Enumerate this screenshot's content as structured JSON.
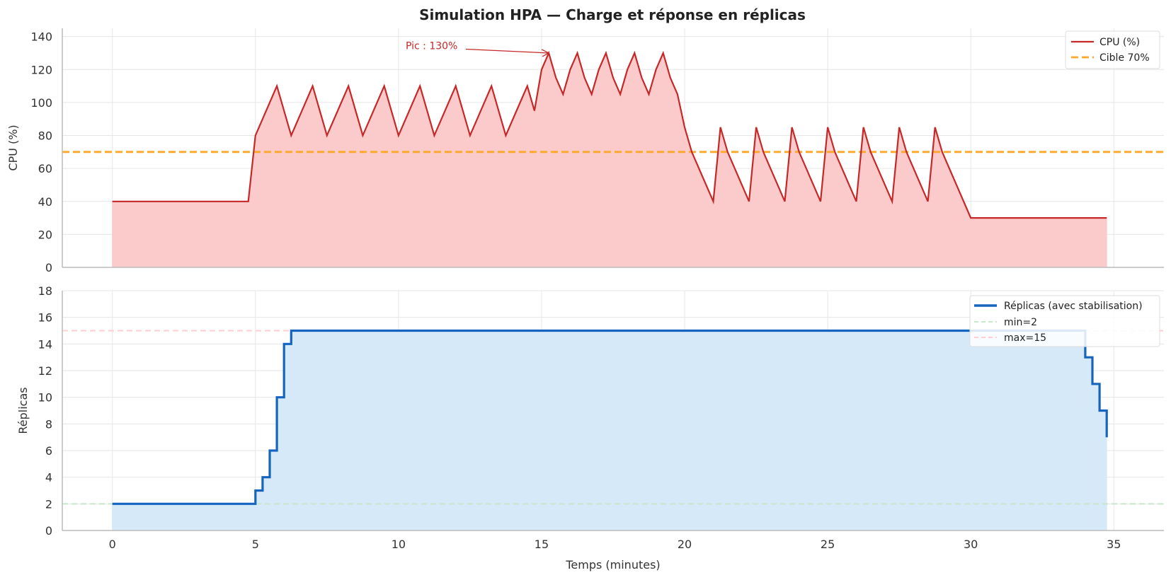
{
  "chart_data": {
    "type": "line",
    "title": "Simulation HPA — Charge et réponse en réplicas",
    "xlabel": "Temps (minutes)",
    "xlim": [
      -1.75,
      36.75
    ],
    "xticks": [
      0,
      5,
      10,
      15,
      20,
      25,
      30,
      35
    ],
    "panels": [
      {
        "ylabel": "CPU (%)",
        "ylim": [
          0,
          145
        ],
        "yticks": [
          0,
          20,
          40,
          60,
          80,
          100,
          120,
          140
        ],
        "legend_placement": "top-right",
        "series": [
          {
            "name": "CPU (%)",
            "color": "#c62828",
            "fill": "#fbcaca",
            "x": [
              0,
              4.75,
              5,
              5.75,
              6.25,
              7,
              7.5,
              8.25,
              8.75,
              9.5,
              10,
              10.75,
              11.25,
              12,
              12.5,
              13.25,
              13.75,
              14.5,
              14.75,
              15,
              15.25,
              15.5,
              15.75,
              16,
              16.25,
              16.5,
              16.75,
              17,
              17.25,
              17.5,
              17.75,
              18,
              18.25,
              18.5,
              18.75,
              19,
              19.25,
              19.5,
              19.75,
              20,
              20.25,
              21,
              21.25,
              21.5,
              22.25,
              22.5,
              22.75,
              23.5,
              23.75,
              24,
              24.75,
              25,
              25.25,
              26,
              26.25,
              26.5,
              27.25,
              27.5,
              27.75,
              28.5,
              28.75,
              29,
              30,
              34.75
            ],
            "values": [
              40,
              40,
              80,
              110,
              80,
              110,
              80,
              110,
              80,
              110,
              80,
              110,
              80,
              110,
              80,
              110,
              80,
              110,
              95,
              120,
              130,
              115,
              105,
              120,
              130,
              115,
              105,
              120,
              130,
              115,
              105,
              120,
              130,
              115,
              105,
              120,
              130,
              115,
              105,
              85,
              70,
              40,
              85,
              70,
              40,
              85,
              70,
              40,
              85,
              70,
              40,
              85,
              70,
              40,
              85,
              70,
              40,
              85,
              70,
              40,
              85,
              70,
              30,
              30
            ]
          },
          {
            "name": "Cible 70%",
            "color": "#ffa726",
            "style": "dashed",
            "y": 70
          }
        ],
        "annotation": {
          "text": "Pic : 130%",
          "point": [
            15.25,
            130
          ],
          "text_position": [
            10.25,
            134.5
          ]
        }
      },
      {
        "ylabel": "Réplicas",
        "ylim": [
          0,
          18
        ],
        "yticks": [
          0,
          2,
          4,
          6,
          8,
          10,
          12,
          14,
          16,
          18
        ],
        "legend_placement": "top-right",
        "series": [
          {
            "name": "Réplicas (avec stabilisation)",
            "color": "#1565c0",
            "fill": "#d6e9f9",
            "step": true,
            "x": [
              0,
              5,
              5.25,
              5.5,
              5.75,
              6,
              6.25,
              34,
              34.25,
              34.5,
              34.75
            ],
            "values": [
              2,
              3,
              4,
              6,
              10,
              14,
              15,
              13,
              11,
              9,
              7
            ]
          },
          {
            "name": "min=2",
            "color": "#c8e6c9",
            "style": "dashed",
            "y": 2
          },
          {
            "name": "max=15",
            "color": "#ffcdd2",
            "style": "dashed",
            "y": 15
          }
        ]
      }
    ]
  }
}
